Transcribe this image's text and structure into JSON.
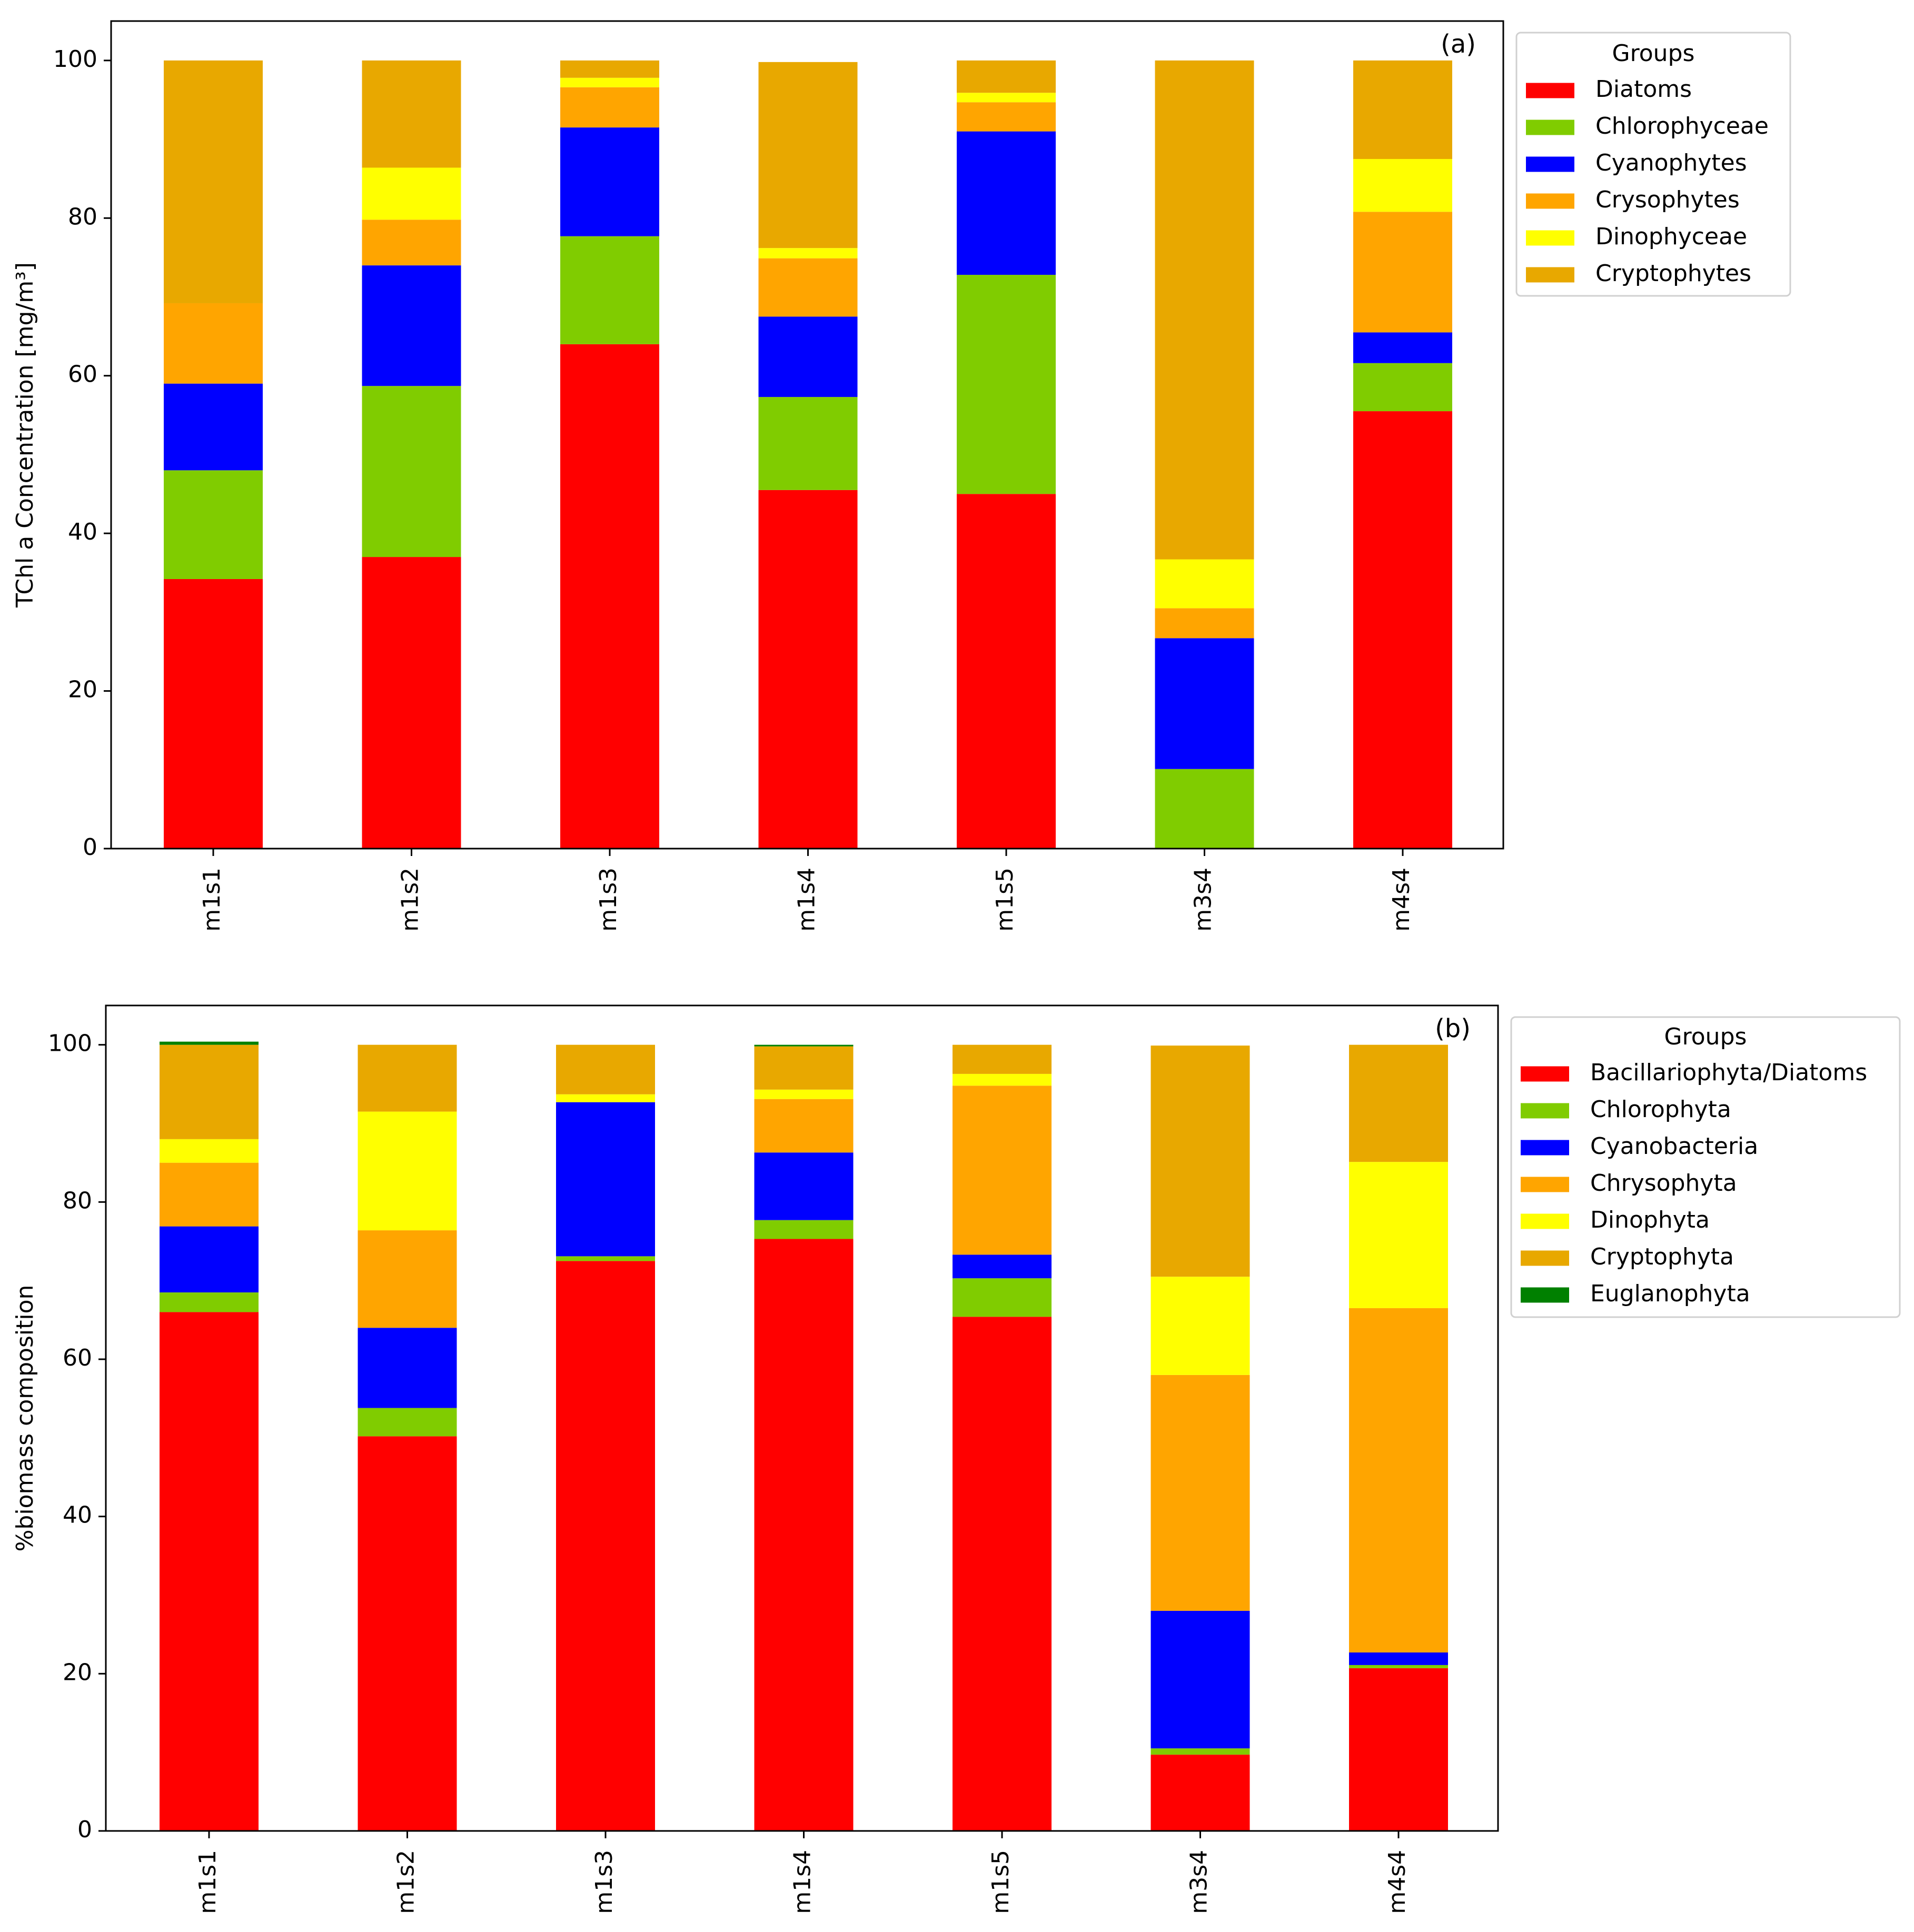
{
  "chart_data": [
    {
      "type": "bar",
      "stacked": true,
      "panel_label": "(a)",
      "title": "",
      "xlabel": "",
      "ylabel": "TChl a Concentration [mg/m³]",
      "ylim": [
        0,
        105
      ],
      "yticks": [
        0,
        20,
        40,
        60,
        80,
        100
      ],
      "categories": [
        "m1s1",
        "m1s2",
        "m1s3",
        "m1s4",
        "m1s5",
        "m3s4",
        "m4s4"
      ],
      "legend": {
        "title": "Groups",
        "placement": "outside right, top"
      },
      "series": [
        {
          "name": "Diatoms",
          "color": "#ff0000",
          "values": [
            34.2,
            37.0,
            64.0,
            45.5,
            45.0,
            0.0,
            55.5
          ]
        },
        {
          "name": "Chlorophyceae",
          "color": "#80cc00",
          "values": [
            13.8,
            21.7,
            13.7,
            11.8,
            27.8,
            10.1,
            6.1
          ]
        },
        {
          "name": "Cyanophytes",
          "color": "#0000ff",
          "values": [
            11.0,
            15.3,
            13.8,
            10.2,
            18.2,
            16.6,
            3.9
          ]
        },
        {
          "name": "Crysophytes",
          "color": "#ffa500",
          "values": [
            10.2,
            5.8,
            5.1,
            7.4,
            3.7,
            3.8,
            15.3
          ]
        },
        {
          "name": "Dinophyceae",
          "color": "#ffff00",
          "values": [
            0.0,
            6.6,
            1.2,
            1.3,
            1.2,
            6.2,
            6.7
          ]
        },
        {
          "name": "Cryptophytes",
          "color": "#e8a800",
          "values": [
            30.8,
            13.6,
            2.2,
            23.6,
            4.1,
            63.3,
            12.5
          ]
        }
      ]
    },
    {
      "type": "bar",
      "stacked": true,
      "panel_label": "(b)",
      "title": "",
      "xlabel": "",
      "ylabel": "%biomass composition",
      "ylim": [
        0,
        105
      ],
      "yticks": [
        0,
        20,
        40,
        60,
        80,
        100
      ],
      "categories": [
        "m1s1",
        "m1s2",
        "m1s3",
        "m1s4",
        "m1s5",
        "m3s4",
        "m4s4"
      ],
      "legend": {
        "title": "Groups",
        "placement": "outside right, top"
      },
      "series": [
        {
          "name": "Bacillariophyta/Diatoms",
          "color": "#ff0000",
          "values": [
            66.0,
            50.2,
            72.5,
            75.3,
            65.4,
            9.7,
            20.7
          ]
        },
        {
          "name": "Chlorophyta",
          "color": "#80cc00",
          "values": [
            2.5,
            3.6,
            0.6,
            2.4,
            4.9,
            0.8,
            0.4
          ]
        },
        {
          "name": "Cyanobacteria",
          "color": "#0000ff",
          "values": [
            8.4,
            10.2,
            19.6,
            8.6,
            3.0,
            17.5,
            1.6
          ]
        },
        {
          "name": "Chrysophyta",
          "color": "#ffa500",
          "values": [
            8.1,
            12.4,
            0.0,
            6.8,
            21.5,
            30.0,
            43.8
          ]
        },
        {
          "name": "Dinophyta",
          "color": "#ffff00",
          "values": [
            3.0,
            15.1,
            1.0,
            1.2,
            1.5,
            12.5,
            18.6
          ]
        },
        {
          "name": "Cryptophyta",
          "color": "#e8a800",
          "values": [
            12.0,
            8.5,
            6.3,
            5.5,
            3.7,
            29.4,
            14.9
          ]
        },
        {
          "name": "Euglanophyta",
          "color": "#008000",
          "values": [
            0.4,
            0.0,
            0.0,
            0.2,
            0.0,
            0.0,
            0.0
          ]
        }
      ]
    }
  ]
}
